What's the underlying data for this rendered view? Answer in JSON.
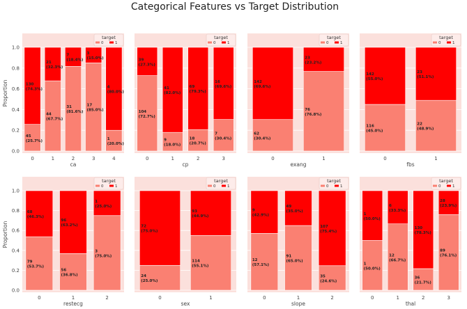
{
  "title": "Categorical Features vs Target Distribution",
  "colors": {
    "background": "#fbe0dc",
    "class0": "#fa8072",
    "class1": "#ff0000"
  },
  "chart_data": [
    {
      "type": "bar",
      "stacked": true,
      "xlabel": "ca",
      "ylabel": "Proportion",
      "ylim": [
        0,
        1
      ],
      "legend_title": "target",
      "legend": [
        "0",
        "1"
      ],
      "legend_position": "top-right",
      "categories": [
        "0",
        "1",
        "2",
        "3",
        "4"
      ],
      "counts0": [
        45,
        44,
        31,
        17,
        1
      ],
      "counts1": [
        130,
        21,
        7,
        3,
        4
      ],
      "pct0": [
        "25.7%",
        "67.7%",
        "81.6%",
        "85.0%",
        "20.0%"
      ],
      "pct1": [
        "74.3%",
        "32.3%",
        "18.4%",
        "15.0%",
        "80.0%"
      ]
    },
    {
      "type": "bar",
      "stacked": true,
      "xlabel": "cp",
      "ylabel": "",
      "ylim": [
        0,
        1
      ],
      "legend_title": "target",
      "legend": [
        "0",
        "1"
      ],
      "legend_position": "top-right",
      "categories": [
        "0",
        "1",
        "2",
        "3"
      ],
      "counts0": [
        104,
        9,
        18,
        7
      ],
      "counts1": [
        39,
        41,
        69,
        16
      ],
      "pct0": [
        "72.7%",
        "18.0%",
        "20.7%",
        "30.4%"
      ],
      "pct1": [
        "27.3%",
        "82.0%",
        "79.3%",
        "69.6%"
      ]
    },
    {
      "type": "bar",
      "stacked": true,
      "xlabel": "exang",
      "ylabel": "",
      "ylim": [
        0,
        1
      ],
      "legend_title": "target",
      "legend": [
        "0",
        "1"
      ],
      "legend_position": "top-right",
      "categories": [
        "0",
        "1"
      ],
      "counts0": [
        62,
        76
      ],
      "counts1": [
        142,
        23
      ],
      "pct0": [
        "30.4%",
        "76.8%"
      ],
      "pct1": [
        "69.6%",
        "23.2%"
      ]
    },
    {
      "type": "bar",
      "stacked": true,
      "xlabel": "fbs",
      "ylabel": "",
      "ylim": [
        0,
        1
      ],
      "legend_title": "target",
      "legend": [
        "0",
        "1"
      ],
      "legend_position": "top-right",
      "categories": [
        "0",
        "1"
      ],
      "counts0": [
        116,
        22
      ],
      "counts1": [
        142,
        23
      ],
      "pct0": [
        "45.0%",
        "48.9%"
      ],
      "pct1": [
        "55.0%",
        "51.1%"
      ]
    },
    {
      "type": "bar",
      "stacked": true,
      "xlabel": "restecg",
      "ylabel": "Proportion",
      "ylim": [
        0,
        1
      ],
      "legend_title": "target",
      "legend": [
        "0",
        "1"
      ],
      "legend_position": "top-right",
      "categories": [
        "0",
        "1",
        "2"
      ],
      "counts0": [
        79,
        56,
        3
      ],
      "counts1": [
        68,
        96,
        1
      ],
      "pct0": [
        "53.7%",
        "36.8%",
        "75.0%"
      ],
      "pct1": [
        "46.3%",
        "63.2%",
        "25.0%"
      ]
    },
    {
      "type": "bar",
      "stacked": true,
      "xlabel": "sex",
      "ylabel": "",
      "ylim": [
        0,
        1
      ],
      "legend_title": "target",
      "legend": [
        "0",
        "1"
      ],
      "legend_position": "top-right",
      "categories": [
        "0",
        "1"
      ],
      "counts0": [
        24,
        114
      ],
      "counts1": [
        72,
        93
      ],
      "pct0": [
        "25.0%",
        "55.1%"
      ],
      "pct1": [
        "75.0%",
        "44.9%"
      ]
    },
    {
      "type": "bar",
      "stacked": true,
      "xlabel": "slope",
      "ylabel": "",
      "ylim": [
        0,
        1
      ],
      "legend_title": "target",
      "legend": [
        "0",
        "1"
      ],
      "legend_position": "top-right",
      "categories": [
        "0",
        "1",
        "2"
      ],
      "counts0": [
        12,
        91,
        35
      ],
      "counts1": [
        9,
        49,
        107
      ],
      "pct0": [
        "57.1%",
        "65.0%",
        "24.6%"
      ],
      "pct1": [
        "42.9%",
        "35.0%",
        "75.4%"
      ]
    },
    {
      "type": "bar",
      "stacked": true,
      "xlabel": "thal",
      "ylabel": "",
      "ylim": [
        0,
        1
      ],
      "legend_title": "target",
      "legend": [
        "0",
        "1"
      ],
      "legend_position": "top-right",
      "categories": [
        "0",
        "1",
        "2",
        "3"
      ],
      "counts0": [
        1,
        12,
        36,
        89
      ],
      "counts1": [
        1,
        6,
        130,
        28
      ],
      "pct0": [
        "50.0%",
        "66.7%",
        "21.7%",
        "76.1%"
      ],
      "pct1": [
        "50.0%",
        "33.3%",
        "78.3%",
        "23.9%"
      ]
    }
  ]
}
